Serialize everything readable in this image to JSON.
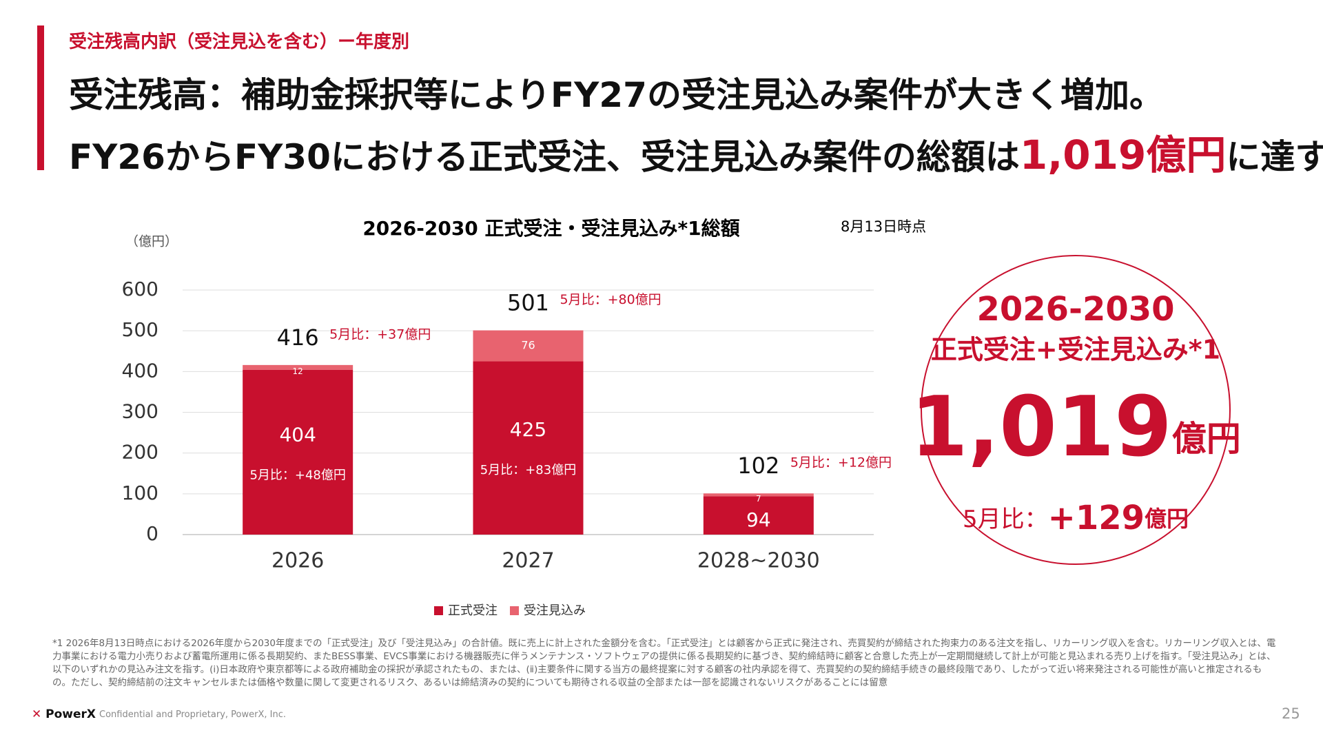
{
  "header": {
    "kicker": "受注残高内訳（受注見込を含む）ー年度別",
    "title_line1": "受注残高：補助金採択等によりFY27の受注見込み案件が大きく増加。",
    "title_line2_pre": "FY26からFY30における正式受注、受注見込み案件の総額は",
    "title_line2_highlight": "1,019億円",
    "title_line2_post": "に達する"
  },
  "chart_data": {
    "type": "stacked_bar",
    "title": "2026-2030 正式受注・受注見込み*1総額",
    "note": "8月13日時点",
    "y_unit": "（億円）",
    "categories": [
      "2026",
      "2027",
      "2028~2030"
    ],
    "series": [
      {
        "name": "正式受注",
        "color": "#c8102e",
        "values": [
          404,
          425,
          94
        ]
      },
      {
        "name": "受注見込み",
        "color": "#e8636f",
        "values": [
          12,
          76,
          7
        ]
      }
    ],
    "totals": [
      416,
      501,
      102
    ],
    "total_change_labels": [
      "5月比：+37億円",
      "5月比：+80億円",
      "5月比：+12億円"
    ],
    "formal_change_labels": [
      "5月比：+48億円",
      "5月比：+83億円",
      null
    ],
    "ylim": [
      0,
      600
    ],
    "yticks": [
      0,
      100,
      200,
      300,
      400,
      500,
      600
    ],
    "grid": true
  },
  "summary": {
    "period": "2026-2030",
    "label": "正式受注+受注見込み*1",
    "amount": "1,019",
    "unit": "億円",
    "change_prefix": "5月比：",
    "change_amount": "+129",
    "change_unit": "億円"
  },
  "footnote": "*1 2026年8月13日時点における2026年度から2030年度までの「正式受注」及び「受注見込み」の合計値。既に売上に計上された金額分を含む。「正式受注」とは顧客から正式に発注され、売買契約が締結された拘束力のある注文を指し、リカーリング収入を含む。リカーリング収入とは、電力事業における電力小売りおよび蓄電所運用に係る長期契約、またBESS事業、EVCS事業における機器販売に伴うメンテナンス・ソフトウェアの提供に係る長期契約に基づき、契約締結時に顧客と合意した売上が一定期間継続して計上が可能と見込まれる売り上げを指す。「受注見込み」とは、以下のいずれかの見込み注文を指す。(ⅰ)日本政府や東京都等による政府補助金の採択が承認されたもの、または、(ⅱ)主要条件に関する当方の最終提案に対する顧客の社内承認を得て、売買契約の契約締結手続きの最終段階であり、したがって近い将来発注される可能性が高いと推定されるもの。ただし、契約締結前の注文キャンセルまたは価格や数量に関して変更されるリスク、あるいは締結済みの契約についても期待される収益の全部または一部を認識されないリスクがあることには留意",
  "footer": {
    "logo": "PowerX",
    "confidential": "Confidential and Proprietary, PowerX, Inc.",
    "page": "25"
  }
}
